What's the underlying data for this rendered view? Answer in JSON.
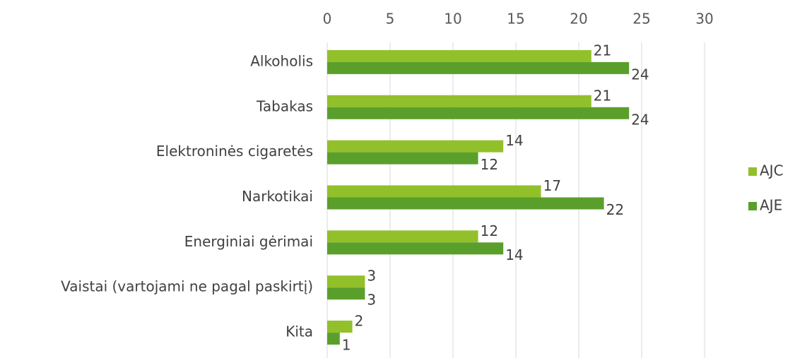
{
  "chart_data": {
    "type": "bar",
    "orientation": "horizontal",
    "categories": [
      "Alkoholis",
      "Tabakas",
      "Elektroninės cigaretės",
      "Narkotikai",
      "Energiniai gėrimai",
      "Vaistai (vartojami ne pagal paskirtį)",
      "Kita"
    ],
    "series": [
      {
        "name": "AJC",
        "color": "#92c02a",
        "values": [
          21,
          21,
          14,
          17,
          12,
          3,
          2
        ]
      },
      {
        "name": "AJE",
        "color": "#5a9f2b",
        "values": [
          24,
          24,
          12,
          22,
          14,
          3,
          1
        ]
      }
    ],
    "xlim": [
      0,
      30
    ],
    "xticks": [
      0,
      5,
      10,
      15,
      20,
      25,
      30
    ],
    "grid": true,
    "legend": "right"
  }
}
